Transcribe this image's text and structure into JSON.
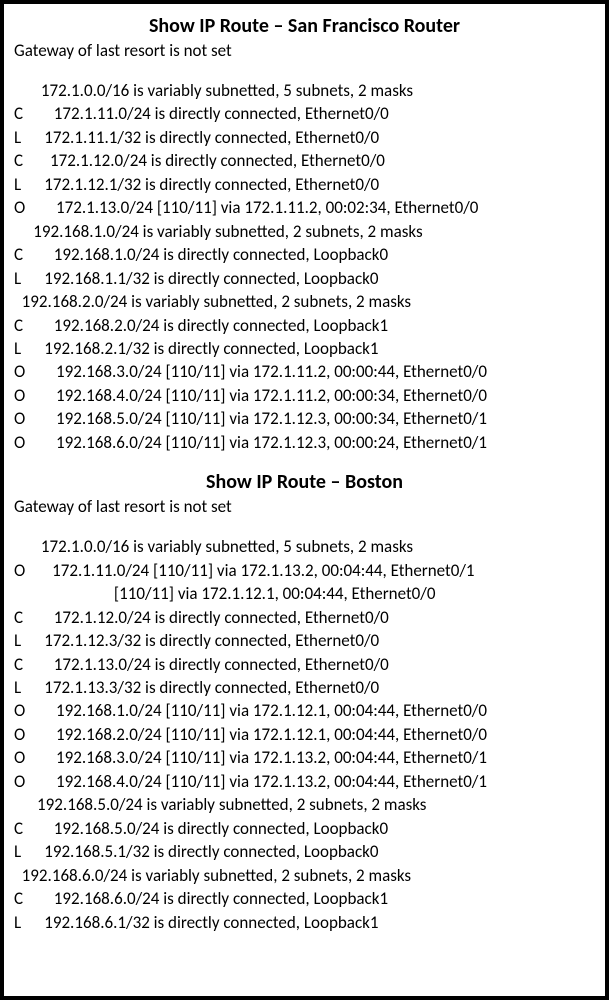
{
  "sections": [
    {
      "title": "Show IP Route – San Francisco Router",
      "gateway": "Gateway of last resort is not set",
      "lines": [
        "       172.1.0.0/16 is variably subnetted, 5 subnets, 2 masks",
        "C        172.1.11.0/24 is directly connected, Ethernet0/0",
        "L      172.1.11.1/32 is directly connected, Ethernet0/0",
        "C       172.1.12.0/24 is directly connected, Ethernet0/0",
        "L      172.1.12.1/32 is directly connected, Ethernet0/0",
        "O        172.1.13.0/24 [110/11] via 172.1.11.2, 00:02:34, Ethernet0/0",
        "     192.168.1.0/24 is variably subnetted, 2 subnets, 2 masks",
        "C        192.168.1.0/24 is directly connected, Loopback0",
        "L      192.168.1.1/32 is directly connected, Loopback0",
        "  192.168.2.0/24 is variably subnetted, 2 subnets, 2 masks",
        "C        192.168.2.0/24 is directly connected, Loopback1",
        "L      192.168.2.1/32 is directly connected, Loopback1",
        "O        192.168.3.0/24 [110/11] via 172.1.11.2, 00:00:44, Ethernet0/0",
        "O        192.168.4.0/24 [110/11] via 172.1.11.2, 00:00:34, Ethernet0/0",
        "O        192.168.5.0/24 [110/11] via 172.1.12.3, 00:00:34, Ethernet0/1",
        "O        192.168.6.0/24 [110/11] via 172.1.12.3, 00:00:24, Ethernet0/1"
      ]
    },
    {
      "title": "Show IP Route – Boston",
      "gateway": "Gateway of last resort is not set",
      "lines": [
        "       172.1.0.0/16 is variably subnetted, 5 subnets, 2 masks",
        "O       172.1.11.0/24 [110/11] via 172.1.13.2, 00:04:44, Ethernet0/1",
        "                          [110/11] via 172.1.12.1, 00:04:44, Ethernet0/0",
        "C        172.1.12.0/24 is directly connected, Ethernet0/0",
        "L      172.1.12.3/32 is directly connected, Ethernet0/0",
        "C        172.1.13.0/24 is directly connected, Ethernet0/0",
        "L      172.1.13.3/32 is directly connected, Ethernet0/0",
        "O        192.168.1.0/24 [110/11] via 172.1.12.1, 00:04:44, Ethernet0/0",
        "O        192.168.2.0/24 [110/11] via 172.1.12.1, 00:04:44, Ethernet0/0",
        "O        192.168.3.0/24 [110/11] via 172.1.13.2, 00:04:44, Ethernet0/1",
        "O        192.168.4.0/24 [110/11] via 172.1.13.2, 00:04:44, Ethernet0/1",
        "      192.168.5.0/24 is variably subnetted, 2 subnets, 2 masks",
        "C        192.168.5.0/24 is directly connected, Loopback0",
        "L      192.168.5.1/32 is directly connected, Loopback0",
        "  192.168.6.0/24 is variably subnetted, 2 subnets, 2 masks",
        "C        192.168.6.0/24 is directly connected, Loopback1",
        "L      192.168.6.1/32 is directly connected, Loopback1"
      ]
    }
  ]
}
